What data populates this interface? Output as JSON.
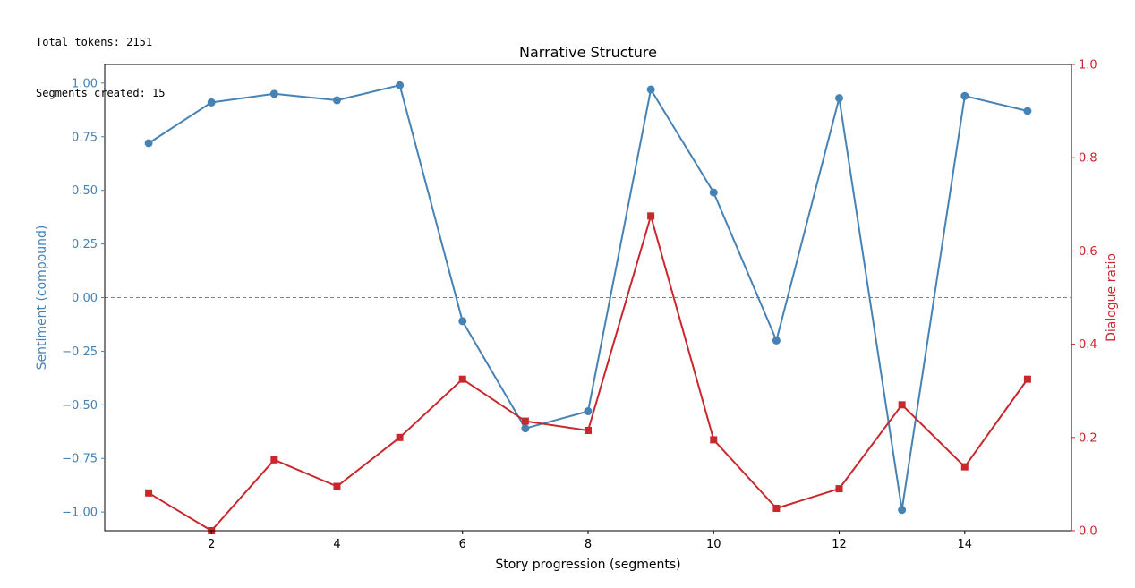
{
  "console": {
    "lines": [
      "Total tokens: 2151",
      "Segments created: 15"
    ]
  },
  "colors": {
    "sentiment": "#4682b4",
    "dialogue": "#c8282d",
    "zero_line": "#808080",
    "axis": "#000000"
  },
  "chart_data": {
    "type": "line",
    "title": "Narrative Structure",
    "xlabel": "Story progression (segments)",
    "ylabel_left": "Sentiment (compound)",
    "ylabel_right": "Dialogue ratio",
    "xlim": [
      0.3,
      15.7
    ],
    "ylim_left": [
      -1.087,
      1.087
    ],
    "ylim_right": [
      0.0,
      1.0
    ],
    "xticks": [
      2,
      4,
      6,
      8,
      10,
      12,
      14
    ],
    "yticks_left": [
      "1.00",
      "0.75",
      "0.50",
      "0.25",
      "0.00",
      "−0.25",
      "−0.50",
      "−0.75",
      "−1.00"
    ],
    "yticks_left_values": [
      1.0,
      0.75,
      0.5,
      0.25,
      0.0,
      -0.25,
      -0.5,
      -0.75,
      -1.0
    ],
    "yticks_right": [
      "0.0",
      "0.2",
      "0.4",
      "0.6",
      "0.8",
      "1.0"
    ],
    "yticks_right_values": [
      0.0,
      0.2,
      0.4,
      0.6,
      0.8,
      1.0
    ],
    "reference_line_y": 0.0,
    "grid": false,
    "x": [
      1,
      2,
      3,
      4,
      5,
      6,
      7,
      8,
      9,
      10,
      11,
      12,
      13,
      14,
      15
    ],
    "series": [
      {
        "axis": "left",
        "marker": "circle",
        "values": [
          0.72,
          0.91,
          0.95,
          0.92,
          0.99,
          -0.11,
          -0.61,
          -0.53,
          0.97,
          0.49,
          -0.2,
          0.93,
          -0.99,
          0.94,
          0.87
        ]
      },
      {
        "axis": "right",
        "marker": "square",
        "values": [
          0.081,
          0.0,
          0.152,
          0.095,
          0.2,
          0.325,
          0.235,
          0.215,
          0.675,
          0.195,
          0.048,
          0.09,
          0.27,
          0.137,
          0.325
        ]
      }
    ]
  }
}
